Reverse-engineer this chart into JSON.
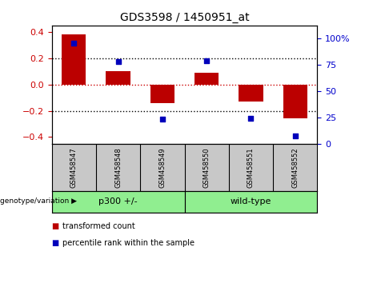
{
  "title": "GDS3598 / 1450951_at",
  "samples": [
    "GSM458547",
    "GSM458548",
    "GSM458549",
    "GSM458550",
    "GSM458551",
    "GSM458552"
  ],
  "bar_values": [
    0.38,
    0.1,
    -0.14,
    0.09,
    -0.13,
    -0.26
  ],
  "scatter_values": [
    96,
    78,
    23,
    79,
    24,
    7
  ],
  "bar_color": "#bb0000",
  "scatter_color": "#0000bb",
  "ylim_left": [
    -0.45,
    0.45
  ],
  "ylim_right": [
    0,
    112.5
  ],
  "yticks_left": [
    -0.4,
    -0.2,
    0.0,
    0.2,
    0.4
  ],
  "yticks_right": [
    0,
    25,
    50,
    75,
    100
  ],
  "ytick_labels_right": [
    "0",
    "25",
    "50",
    "75",
    "100%"
  ],
  "hlines_dotted": [
    0.2,
    -0.2
  ],
  "hline_red_dotted": 0.0,
  "group_labels": [
    "p300 +/-",
    "wild-type"
  ],
  "group_ranges": [
    [
      0,
      2
    ],
    [
      3,
      5
    ]
  ],
  "group_color": "#90ee90",
  "genotype_label": "genotype/variation",
  "legend_bar_label": "transformed count",
  "legend_scatter_label": "percentile rank within the sample",
  "bg_color": "#ffffff",
  "xtick_bg": "#c8c8c8",
  "tick_color_left": "#cc0000",
  "tick_color_right": "#0000cc",
  "bar_width": 0.55
}
